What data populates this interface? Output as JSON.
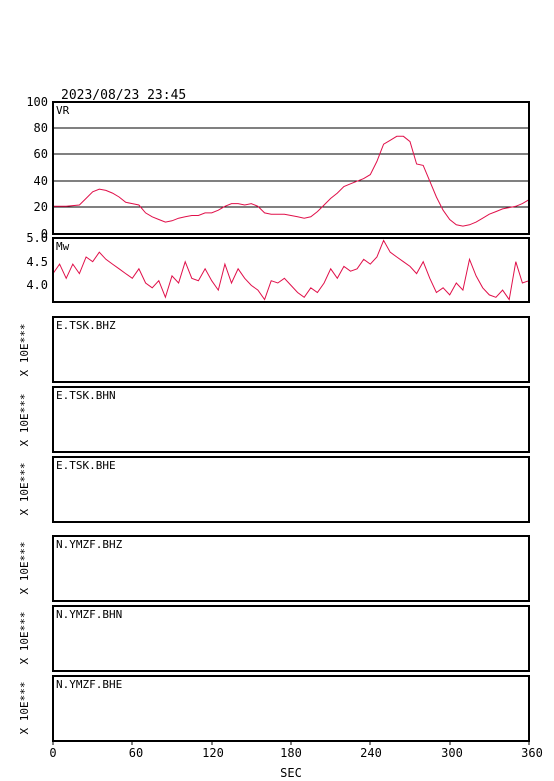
{
  "header": {
    "timestamp": "2023/08/23 23:45"
  },
  "vr_panel": {
    "label": "VR",
    "yticks": [
      "0",
      "20",
      "40",
      "60",
      "80",
      "100"
    ]
  },
  "mw_panel": {
    "label": "Mw",
    "yticks": [
      "4.0",
      "4.5",
      "5.0"
    ]
  },
  "stations": [
    {
      "label": "E.TSK.BHZ",
      "scale": "X 10E***"
    },
    {
      "label": "E.TSK.BHN",
      "scale": "X 10E***"
    },
    {
      "label": "E.TSK.BHE",
      "scale": "X 10E***"
    },
    {
      "label": "N.YMZF.BHZ",
      "scale": "X 10E***"
    },
    {
      "label": "N.YMZF.BHN",
      "scale": "X 10E***"
    },
    {
      "label": "N.YMZF.BHE",
      "scale": "X 10E***"
    }
  ],
  "xaxis": {
    "label": "SEC",
    "ticks": [
      "0",
      "60",
      "120",
      "180",
      "240",
      "300",
      "360"
    ]
  },
  "colors": {
    "series": "#e0104a",
    "frame": "#000000"
  },
  "chart_data": [
    {
      "type": "line",
      "title": "VR",
      "xlabel": "SEC",
      "ylabel": "",
      "xlim": [
        0,
        360
      ],
      "ylim": [
        0,
        100
      ],
      "grid": true,
      "x": [
        0,
        10,
        20,
        25,
        30,
        35,
        40,
        45,
        50,
        55,
        60,
        65,
        70,
        75,
        80,
        85,
        90,
        95,
        100,
        105,
        110,
        115,
        120,
        125,
        130,
        135,
        140,
        145,
        150,
        155,
        160,
        165,
        170,
        175,
        180,
        185,
        190,
        195,
        200,
        205,
        210,
        215,
        220,
        225,
        230,
        235,
        240,
        245,
        250,
        255,
        260,
        265,
        270,
        275,
        280,
        285,
        290,
        295,
        300,
        305,
        310,
        315,
        320,
        325,
        330,
        335,
        340,
        345,
        350,
        355,
        360
      ],
      "series": [
        {
          "values": [
            21,
            21,
            22,
            27,
            32,
            34,
            33,
            31,
            28,
            24,
            23,
            22,
            16,
            13,
            11,
            9,
            10,
            12,
            13,
            14,
            14,
            16,
            16,
            18,
            21,
            23,
            23,
            22,
            23,
            21,
            16,
            15,
            15,
            15,
            14,
            13,
            12,
            13,
            17,
            22,
            27,
            31,
            36,
            38,
            40,
            42,
            45,
            55,
            68,
            71,
            74,
            74,
            70,
            53,
            52,
            40,
            28,
            18,
            11,
            7,
            6,
            7,
            9,
            12,
            15,
            17,
            19,
            20,
            21,
            23,
            26
          ]
        }
      ]
    },
    {
      "type": "line",
      "title": "Mw",
      "xlabel": "SEC",
      "ylabel": "",
      "xlim": [
        0,
        360
      ],
      "ylim": [
        3.65,
        5.0
      ],
      "grid": false,
      "x": [
        0,
        5,
        10,
        15,
        20,
        25,
        30,
        35,
        40,
        45,
        50,
        55,
        60,
        65,
        70,
        75,
        80,
        85,
        90,
        95,
        100,
        105,
        110,
        115,
        120,
        125,
        130,
        135,
        140,
        145,
        150,
        155,
        160,
        165,
        170,
        175,
        180,
        185,
        190,
        195,
        200,
        205,
        210,
        215,
        220,
        225,
        230,
        235,
        240,
        245,
        250,
        255,
        260,
        265,
        270,
        275,
        280,
        285,
        290,
        295,
        300,
        305,
        310,
        315,
        320,
        325,
        330,
        335,
        340,
        345,
        350,
        355,
        360
      ],
      "series": [
        {
          "values": [
            4.25,
            4.45,
            4.15,
            4.45,
            4.25,
            4.6,
            4.5,
            4.7,
            4.55,
            4.45,
            4.35,
            4.25,
            4.15,
            4.35,
            4.05,
            3.95,
            4.1,
            3.75,
            4.2,
            4.05,
            4.5,
            4.15,
            4.1,
            4.35,
            4.1,
            3.9,
            4.45,
            4.05,
            4.35,
            4.15,
            4.0,
            3.9,
            3.7,
            4.1,
            4.05,
            4.15,
            4.0,
            3.85,
            3.75,
            3.95,
            3.85,
            4.05,
            4.35,
            4.15,
            4.4,
            4.3,
            4.35,
            4.55,
            4.45,
            4.6,
            4.95,
            4.7,
            4.6,
            4.5,
            4.4,
            4.25,
            4.5,
            4.15,
            3.85,
            3.95,
            3.8,
            4.05,
            3.9,
            4.55,
            4.2,
            3.95,
            3.8,
            3.75,
            3.9,
            3.7,
            4.5,
            4.05,
            4.1
          ]
        }
      ]
    }
  ]
}
